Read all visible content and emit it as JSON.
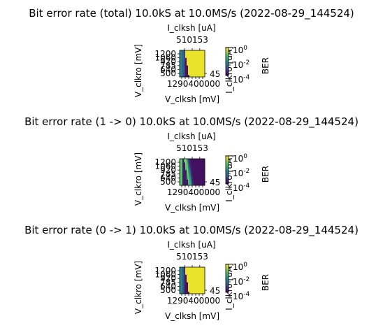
{
  "figure": {
    "bg": "#ffffff"
  },
  "colormap": [
    "#440154",
    "#3b528b",
    "#21918c",
    "#5ec962",
    "#fde725"
  ],
  "chart_data": [
    {
      "type": "heatmap",
      "title": "Bit error rate (total) 10.0kS at 10.0MS/s (2022-08-29_144524)",
      "xlabel": "V_clksh [mV]",
      "ylabel": "V_clkro [mV]",
      "top_xlabel": "I_clksh [uA]",
      "right_ylabel": "I_clkro [uA]",
      "colorbar_label": "BER",
      "colorbar_ticks": [
        "10^0",
        "10^-2",
        "10^-4"
      ],
      "x_ticks": [
        "1200",
        "1340",
        "1480",
        "1620",
        "1760",
        "1900",
        "2000"
      ],
      "x_tick_display": "1290400000",
      "top_ticks": [
        "51",
        "102",
        "153"
      ],
      "top_tick_display": "510153",
      "y_ticks": [
        "1200",
        "1060",
        "920",
        "785",
        "640",
        "500"
      ],
      "y_tick_display": [
        "1200",
        "1060",
        "920",
        "785",
        "640",
        "500"
      ],
      "right_ticks": [
        "45"
      ],
      "pattern": "total",
      "grid": false
    },
    {
      "type": "heatmap",
      "title": "Bit error rate (1 -> 0) 10.0kS at 10.0MS/s (2022-08-29_144524)",
      "xlabel": "V_clksh [mV]",
      "ylabel": "V_clkro [mV]",
      "top_xlabel": "I_clksh [uA]",
      "right_ylabel": "I_clkro [uA]",
      "colorbar_label": "BER",
      "colorbar_ticks": [
        "10^0",
        "10^-2",
        "10^-4"
      ],
      "x_ticks": [
        "1200",
        "1340",
        "1480",
        "1620",
        "1760",
        "1900",
        "2000"
      ],
      "x_tick_display": "1290400000",
      "top_ticks": [
        "51",
        "102",
        "153"
      ],
      "top_tick_display": "510153",
      "y_ticks": [
        "1200",
        "1060",
        "920",
        "785",
        "640",
        "500"
      ],
      "y_tick_display": [
        "1200",
        "1060",
        "920",
        "785",
        "640",
        "500"
      ],
      "right_ticks": [
        "45"
      ],
      "pattern": "one_to_zero",
      "grid": false
    },
    {
      "type": "heatmap",
      "title": "Bit error rate (0 -> 1) 10.0kS at 10.0MS/s (2022-08-29_144524)",
      "xlabel": "V_clksh [mV]",
      "ylabel": "V_clkro [mV]",
      "top_xlabel": "I_clksh [uA]",
      "right_ylabel": "I_clkro [uA]",
      "colorbar_label": "BER",
      "colorbar_ticks": [
        "10^0",
        "10^-2",
        "10^-4"
      ],
      "x_ticks": [
        "1200",
        "1340",
        "1480",
        "1620",
        "1760",
        "1900",
        "2000"
      ],
      "x_tick_display": "1290400000",
      "top_ticks": [
        "51",
        "102",
        "153"
      ],
      "top_tick_display": "510153",
      "y_ticks": [
        "1200",
        "1060",
        "920",
        "785",
        "640",
        "500"
      ],
      "y_tick_display": [
        "1200",
        "1060",
        "920",
        "785",
        "640",
        "500"
      ],
      "right_ticks": [
        "45"
      ],
      "pattern": "zero_to_one",
      "grid": false
    }
  ]
}
